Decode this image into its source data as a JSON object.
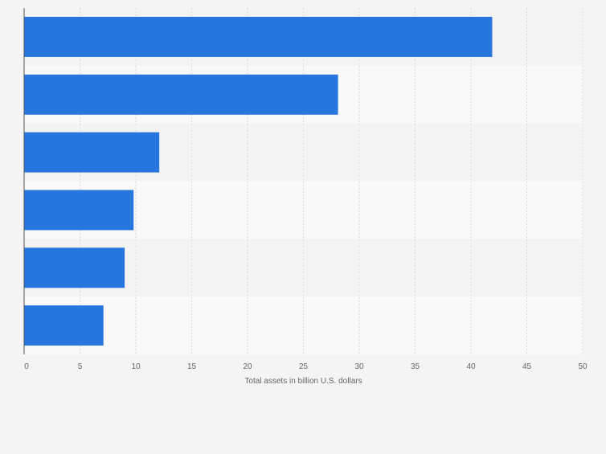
{
  "colors": {
    "background": "#f4f4f4",
    "band_light": "#f9f9f9",
    "band_dark": "#f3f3f3",
    "bar": "#2676de",
    "grid": "#dcdcdc",
    "axis": "#555555",
    "tick_text": "#666666"
  },
  "chart_data": {
    "type": "bar",
    "orientation": "horizontal",
    "categories": [
      "",
      "",
      "",
      "",
      "",
      ""
    ],
    "values": [
      41.9,
      28.1,
      12.1,
      9.8,
      9.0,
      7.1
    ],
    "xlabel": "Total assets in billion U.S. dollars",
    "xlim": [
      0,
      50
    ],
    "xticks": [
      0,
      5,
      10,
      15,
      20,
      25,
      30,
      35,
      40,
      45,
      50
    ],
    "grid": true,
    "legend": "none"
  }
}
